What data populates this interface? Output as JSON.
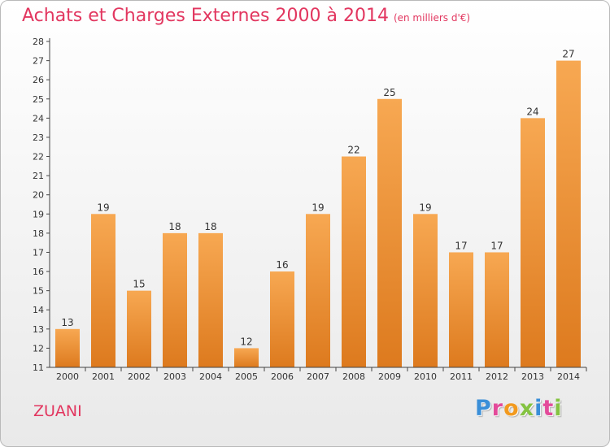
{
  "header": {
    "title": "Achats et Charges Externes 2000 à 2014",
    "subtitle": "(en milliers d'€)"
  },
  "footer": {
    "commune": "ZUANI",
    "logo": "Proxiti"
  },
  "colors": {
    "title": "#e2365f",
    "bar_top": "#f7a852",
    "bar_bottom": "#dd7a1e",
    "logo_letters": [
      "#3a8fd8",
      "#e34a9a",
      "#f29a1f",
      "#84c341",
      "#3a8fd8",
      "#e34a9a",
      "#84c341"
    ]
  },
  "chart_data": {
    "type": "bar",
    "categories": [
      "2000",
      "2001",
      "2002",
      "2003",
      "2004",
      "2005",
      "2006",
      "2007",
      "2008",
      "2009",
      "2010",
      "2011",
      "2012",
      "2013",
      "2014"
    ],
    "values": [
      13,
      19,
      15,
      18,
      18,
      12,
      16,
      19,
      22,
      25,
      19,
      17,
      17,
      24,
      27
    ],
    "ylim": [
      11,
      28
    ],
    "yticks": [
      11,
      12,
      13,
      14,
      15,
      16,
      17,
      18,
      19,
      20,
      21,
      22,
      23,
      24,
      25,
      26,
      27,
      28
    ],
    "grid": false,
    "data_labels": true
  }
}
